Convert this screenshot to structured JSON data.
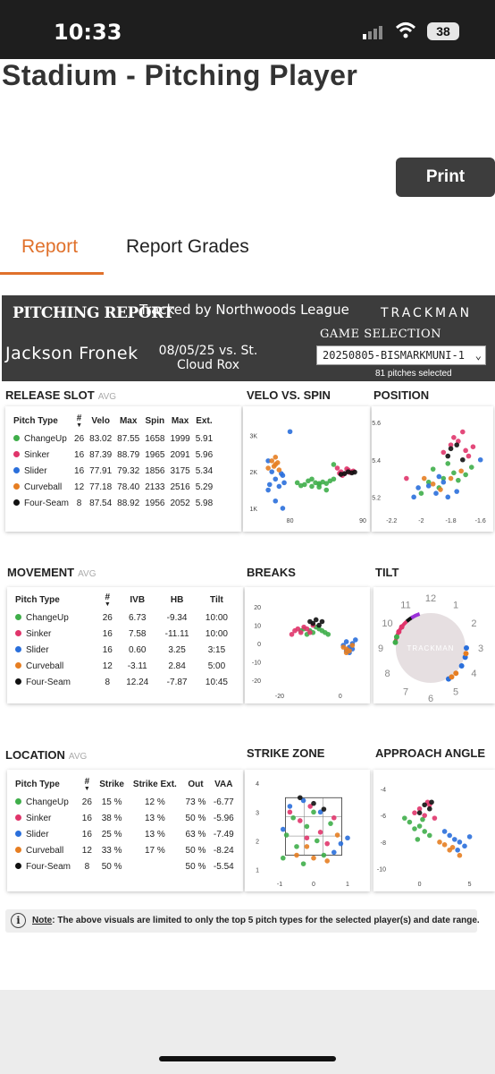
{
  "status_bar": {
    "time": "10:33",
    "battery": "38"
  },
  "page": {
    "title": "Stadium - Pitching Player",
    "print_label": "Print"
  },
  "tabs": [
    {
      "label": "Report",
      "active": true
    },
    {
      "label": "Report Grades",
      "active": false
    }
  ],
  "report": {
    "header": "PITCHING REPORT",
    "tracked_by": "Tracked by Northwoods League",
    "brand": "TRACKMAN",
    "player": "Jackson Fronek",
    "game": "08/05/25 vs. St. Cloud Rox",
    "game_selection_label": "GAME SELECTION",
    "game_selection_value": "20250805-BISMARKMUNI-1",
    "pitches_selected": "81 pitches selected"
  },
  "colors": {
    "ChangeUp": "#3fae4a",
    "Sinker": "#e0356b",
    "Slider": "#2a6fdb",
    "Curveball": "#e67e22",
    "Four-Seam": "#111111",
    "accent": "#e0712b"
  },
  "release_slot": {
    "title": "RELEASE SLOT",
    "avg": "AVG",
    "columns": [
      "Pitch Type",
      "#",
      "Velo",
      "Max",
      "Spin",
      "Max",
      "Ext."
    ],
    "rows": [
      [
        "ChangeUp",
        "26",
        "83.02",
        "87.55",
        "1658",
        "1999",
        "5.91"
      ],
      [
        "Sinker",
        "16",
        "87.39",
        "88.79",
        "1965",
        "2091",
        "5.96"
      ],
      [
        "Slider",
        "16",
        "77.91",
        "79.32",
        "1856",
        "3175",
        "5.34"
      ],
      [
        "Curveball",
        "12",
        "77.18",
        "78.40",
        "2133",
        "2516",
        "5.29"
      ],
      [
        "Four-Seam",
        "8",
        "87.54",
        "88.92",
        "1956",
        "2052",
        "5.98"
      ]
    ]
  },
  "movement": {
    "title": "MOVEMENT",
    "avg": "AVG",
    "columns": [
      "Pitch Type",
      "#",
      "IVB",
      "HB",
      "Tilt"
    ],
    "rows": [
      [
        "ChangeUp",
        "26",
        "6.73",
        "-9.34",
        "10:00"
      ],
      [
        "Sinker",
        "16",
        "7.58",
        "-11.11",
        "10:00"
      ],
      [
        "Slider",
        "16",
        "0.60",
        "3.25",
        "3:15"
      ],
      [
        "Curveball",
        "12",
        "-3.11",
        "2.84",
        "5:00"
      ],
      [
        "Four-Seam",
        "8",
        "12.24",
        "-7.87",
        "10:45"
      ]
    ]
  },
  "location": {
    "title": "LOCATION",
    "avg": "AVG",
    "columns": [
      "Pitch Type",
      "#",
      "Strike",
      "Strike Ext.",
      "Out",
      "VAA"
    ],
    "rows": [
      [
        "ChangeUp",
        "26",
        "15 %",
        "12 %",
        "73 %",
        "-6.77"
      ],
      [
        "Sinker",
        "16",
        "38 %",
        "13 %",
        "50 %",
        "-5.96"
      ],
      [
        "Slider",
        "16",
        "25 %",
        "13 %",
        "63 %",
        "-7.49"
      ],
      [
        "Curveball",
        "12",
        "33 %",
        "17 %",
        "50 %",
        "-8.24"
      ],
      [
        "Four-Seam",
        "8",
        "50 %",
        "",
        "50 %",
        "-5.54"
      ]
    ]
  },
  "chart_titles": {
    "velo_spin": "VELO VS. SPIN",
    "position": "POSITION",
    "breaks": "BREAKS",
    "tilt": "TILT",
    "strike_zone": "STRIKE ZONE",
    "approach_angle": "APPROACH ANGLE"
  },
  "tilt_labels": [
    "12",
    "1",
    "2",
    "3",
    "4",
    "5",
    "6",
    "7",
    "8",
    "9",
    "10",
    "11"
  ],
  "chart_data": [
    {
      "type": "scatter",
      "title": "VELO VS. SPIN",
      "xticks": [
        80,
        90
      ],
      "yticks": [
        "1K",
        "2K",
        "3K"
      ],
      "xlim": [
        76,
        90
      ],
      "ylim": [
        900,
        3400
      ],
      "series": [
        {
          "name": "ChangeUp",
          "points": [
            [
              81,
              1700
            ],
            [
              82,
              1650
            ],
            [
              83,
              1600
            ],
            [
              83.5,
              1700
            ],
            [
              84,
              1650
            ],
            [
              84.5,
              1720
            ],
            [
              85,
              1680
            ],
            [
              82.5,
              1750
            ],
            [
              81.5,
              1620
            ],
            [
              84,
              1580
            ],
            [
              86,
              1800
            ],
            [
              85.5,
              1750
            ],
            [
              83,
              1800
            ],
            [
              86,
              2200
            ],
            [
              85,
              1500
            ],
            [
              84,
              1680
            ]
          ]
        },
        {
          "name": "Sinker",
          "points": [
            [
              87,
              2000
            ],
            [
              87.5,
              1950
            ],
            [
              88,
              2050
            ],
            [
              88.5,
              2000
            ],
            [
              86.5,
              2100
            ],
            [
              87.2,
              1900
            ],
            [
              88.2,
              1980
            ],
            [
              87.8,
              2080
            ],
            [
              86.8,
              1960
            ],
            [
              88.7,
              2020
            ]
          ]
        },
        {
          "name": "Slider",
          "points": [
            [
              77,
              1500
            ],
            [
              78,
              1800
            ],
            [
              79,
              1900
            ],
            [
              78.5,
              1600
            ],
            [
              77.5,
              2000
            ],
            [
              79.2,
              1700
            ],
            [
              78.8,
              1950
            ],
            [
              77.2,
              1650
            ],
            [
              80,
              3100
            ],
            [
              78,
              1200
            ],
            [
              79,
              1000
            ],
            [
              77,
              2300
            ]
          ]
        },
        {
          "name": "Curveball",
          "points": [
            [
              77,
              2100
            ],
            [
              78,
              2200
            ],
            [
              78.5,
              2050
            ],
            [
              77.5,
              2300
            ],
            [
              78,
              2400
            ],
            [
              77.8,
              2150
            ],
            [
              78.3,
              2250
            ]
          ]
        },
        {
          "name": "Four-Seam",
          "points": [
            [
              87.5,
              1950
            ],
            [
              88.5,
              1970
            ],
            [
              87,
              1930
            ],
            [
              88,
              2000
            ],
            [
              88.9,
              1990
            ]
          ]
        }
      ]
    },
    {
      "type": "scatter",
      "title": "POSITION",
      "xticks": [
        -2.2,
        -2.0,
        -1.8,
        -1.6
      ],
      "yticks": [
        5.2,
        5.4,
        5.6
      ],
      "xlim": [
        -2.25,
        -1.55
      ],
      "ylim": [
        5.12,
        5.62
      ],
      "series": [
        {
          "name": "ChangeUp",
          "points": [
            [
              -1.92,
              5.35
            ],
            [
              -1.85,
              5.3
            ],
            [
              -1.78,
              5.33
            ],
            [
              -1.95,
              5.28
            ],
            [
              -1.7,
              5.32
            ],
            [
              -1.82,
              5.38
            ],
            [
              -1.88,
              5.25
            ],
            [
              -1.75,
              5.29
            ],
            [
              -1.66,
              5.36
            ],
            [
              -2.0,
              5.22
            ]
          ]
        },
        {
          "name": "Sinker",
          "points": [
            [
              -1.8,
              5.48
            ],
            [
              -1.75,
              5.5
            ],
            [
              -1.7,
              5.45
            ],
            [
              -1.72,
              5.55
            ],
            [
              -1.68,
              5.42
            ],
            [
              -1.85,
              5.44
            ],
            [
              -1.78,
              5.52
            ],
            [
              -1.65,
              5.47
            ],
            [
              -2.1,
              5.3
            ]
          ]
        },
        {
          "name": "Slider",
          "points": [
            [
              -1.95,
              5.26
            ],
            [
              -1.9,
              5.22
            ],
            [
              -1.85,
              5.28
            ],
            [
              -1.82,
              5.2
            ],
            [
              -2.02,
              5.25
            ],
            [
              -1.88,
              5.31
            ],
            [
              -1.76,
              5.23
            ],
            [
              -1.6,
              5.4
            ],
            [
              -2.05,
              5.2
            ]
          ]
        },
        {
          "name": "Curveball",
          "points": [
            [
              -1.98,
              5.3
            ],
            [
              -1.92,
              5.27
            ],
            [
              -1.87,
              5.24
            ],
            [
              -1.8,
              5.3
            ],
            [
              -1.73,
              5.34
            ]
          ]
        },
        {
          "name": "Four-Seam",
          "points": [
            [
              -1.8,
              5.46
            ],
            [
              -1.76,
              5.48
            ],
            [
              -1.72,
              5.4
            ],
            [
              -1.82,
              5.42
            ]
          ]
        }
      ]
    },
    {
      "type": "scatter",
      "title": "BREAKS",
      "xticks": [
        -20,
        0
      ],
      "yticks": [
        20,
        10,
        0,
        -10,
        -20
      ],
      "xlim": [
        -25,
        8
      ],
      "ylim": [
        -24,
        24
      ],
      "series": [
        {
          "name": "ChangeUp",
          "points": [
            [
              -12,
              8
            ],
            [
              -10,
              7
            ],
            [
              -8,
              9
            ],
            [
              -9,
              6
            ],
            [
              -7,
              8
            ],
            [
              -11,
              5
            ],
            [
              -6,
              7
            ],
            [
              -5,
              6
            ],
            [
              -13,
              7
            ],
            [
              -4,
              5
            ]
          ]
        },
        {
          "name": "Sinker",
          "points": [
            [
              -14,
              8
            ],
            [
              -13,
              6
            ],
            [
              -12,
              9
            ],
            [
              -15,
              7
            ],
            [
              -11,
              8
            ],
            [
              -10,
              6
            ],
            [
              -16,
              5
            ],
            [
              -9,
              10
            ]
          ]
        },
        {
          "name": "Slider",
          "points": [
            [
              3,
              -2
            ],
            [
              2,
              1
            ],
            [
              4,
              0
            ],
            [
              2,
              -4
            ],
            [
              5,
              2
            ],
            [
              1,
              -1
            ],
            [
              3,
              -5
            ],
            [
              4,
              -3
            ]
          ]
        },
        {
          "name": "Curveball",
          "points": [
            [
              2,
              -3
            ],
            [
              3,
              -4
            ],
            [
              1,
              -2
            ],
            [
              4,
              -1
            ],
            [
              2,
              -5
            ]
          ]
        },
        {
          "name": "Four-Seam",
          "points": [
            [
              -10,
              12
            ],
            [
              -8,
              13
            ],
            [
              -6,
              12
            ],
            [
              -9,
              11
            ],
            [
              -7,
              10
            ]
          ]
        }
      ]
    },
    {
      "type": "scatter",
      "title": "STRIKE ZONE",
      "xticks": [
        -1,
        0,
        1
      ],
      "yticks": [
        4,
        3,
        2,
        1
      ],
      "xlim": [
        -1.5,
        1.5
      ],
      "ylim": [
        0.8,
        4.1
      ],
      "series": [
        {
          "name": "ChangeUp",
          "points": [
            [
              -0.8,
              2.2
            ],
            [
              -0.5,
              1.8
            ],
            [
              -0.2,
              2.5
            ],
            [
              0.3,
              1.5
            ],
            [
              -0.6,
              2.8
            ],
            [
              0.1,
              2.0
            ],
            [
              -0.9,
              1.4
            ],
            [
              0.5,
              2.6
            ],
            [
              -0.3,
              1.2
            ],
            [
              0.0,
              3.0
            ]
          ]
        },
        {
          "name": "Sinker",
          "points": [
            [
              -0.4,
              2.7
            ],
            [
              0.2,
              2.3
            ],
            [
              -0.1,
              3.2
            ],
            [
              0.6,
              2.8
            ],
            [
              -0.7,
              3.0
            ],
            [
              0.4,
              1.9
            ],
            [
              -0.2,
              2.1
            ]
          ]
        },
        {
          "name": "Slider",
          "points": [
            [
              -0.7,
              3.2
            ],
            [
              -0.3,
              3.4
            ],
            [
              0.8,
              1.9
            ],
            [
              1.0,
              2.1
            ],
            [
              0.6,
              1.6
            ],
            [
              -0.9,
              2.4
            ],
            [
              0.2,
              3.0
            ]
          ]
        },
        {
          "name": "Curveball",
          "points": [
            [
              -0.5,
              1.5
            ],
            [
              0.0,
              1.4
            ],
            [
              0.4,
              1.3
            ],
            [
              -0.2,
              1.8
            ],
            [
              0.7,
              2.2
            ]
          ]
        },
        {
          "name": "Four-Seam",
          "points": [
            [
              0.0,
              3.3
            ],
            [
              0.3,
              3.1
            ],
            [
              -0.4,
              3.5
            ]
          ]
        }
      ]
    },
    {
      "type": "scatter",
      "title": "APPROACH ANGLE",
      "xticks": [
        0,
        5
      ],
      "yticks": [
        -4,
        -6,
        -8,
        -10
      ],
      "xlim": [
        -3,
        7
      ],
      "ylim": [
        -10.5,
        -3.5
      ],
      "series": [
        {
          "name": "ChangeUp",
          "points": [
            [
              -1,
              -6.5
            ],
            [
              -0.5,
              -7
            ],
            [
              0,
              -6.8
            ],
            [
              0.5,
              -7.2
            ],
            [
              -1.5,
              -6.2
            ],
            [
              1,
              -7.5
            ],
            [
              -0.2,
              -7.8
            ],
            [
              0.3,
              -6.3
            ]
          ]
        },
        {
          "name": "Sinker",
          "points": [
            [
              0,
              -5.5
            ],
            [
              0.5,
              -6
            ],
            [
              1,
              -5.2
            ],
            [
              -0.5,
              -5.8
            ],
            [
              1.5,
              -6.2
            ],
            [
              0.8,
              -5
            ]
          ]
        },
        {
          "name": "Slider",
          "points": [
            [
              3,
              -7.5
            ],
            [
              4,
              -8
            ],
            [
              3.5,
              -7.8
            ],
            [
              2.5,
              -7.2
            ],
            [
              4.5,
              -8.3
            ],
            [
              5,
              -7.6
            ],
            [
              3.8,
              -8.6
            ]
          ]
        },
        {
          "name": "Curveball",
          "points": [
            [
              2.5,
              -8.2
            ],
            [
              3,
              -8.6
            ],
            [
              4,
              -9
            ],
            [
              3.3,
              -8.4
            ],
            [
              2,
              -8
            ]
          ]
        },
        {
          "name": "Four-Seam",
          "points": [
            [
              0.5,
              -5.2
            ],
            [
              1,
              -5.5
            ],
            [
              0,
              -5.8
            ],
            [
              1.2,
              -5
            ]
          ]
        }
      ]
    }
  ],
  "note": {
    "label": "Note",
    "text": ": The above visuals are limited to only the top 5 pitch types for the selected player(s) and date range."
  }
}
